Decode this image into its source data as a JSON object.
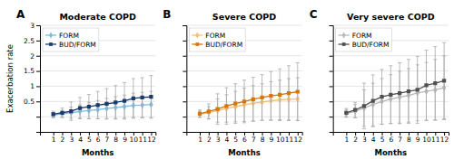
{
  "chart_data": [
    {
      "type": "line",
      "title": "Moderate COPD",
      "annotations": [
        "A"
      ],
      "xlabel": "Months",
      "ylabel": "Exacerbation rate",
      "x": [
        1,
        2,
        3,
        4,
        5,
        6,
        7,
        8,
        9,
        10,
        11,
        12
      ],
      "xlim": [
        -0.5,
        12.5
      ],
      "xticks": [
        1,
        2,
        3,
        4,
        5,
        6,
        7,
        8,
        9,
        10,
        11,
        12
      ],
      "ylim": [
        -0.5,
        3.0
      ],
      "yticks": [
        {
          "value": 0.0,
          "label": null
        },
        0.5,
        1,
        1.5,
        2,
        2.5,
        3
      ],
      "grid": true,
      "legend": "upper left",
      "series": [
        {
          "name": "FORM",
          "color": "#7bbcde",
          "marker": "diamond",
          "values": [
            0.05,
            0.09,
            0.13,
            0.17,
            0.2,
            0.23,
            0.27,
            0.3,
            0.33,
            0.37,
            0.38,
            0.4
          ],
          "errors": [
            0.08,
            0.12,
            0.18,
            0.22,
            0.27,
            0.3,
            0.33,
            0.36,
            0.38,
            0.4,
            0.42,
            0.43
          ]
        },
        {
          "name": "BUD/FORM",
          "color": "#1a3a6b",
          "marker": "square",
          "values": [
            0.08,
            0.13,
            0.18,
            0.28,
            0.33,
            0.38,
            0.42,
            0.47,
            0.52,
            0.6,
            0.63,
            0.65
          ],
          "errors": [
            0.1,
            0.15,
            0.3,
            0.35,
            0.4,
            0.45,
            0.5,
            0.55,
            0.6,
            0.65,
            0.65,
            0.7
          ]
        }
      ]
    },
    {
      "type": "line",
      "title": "Severe COPD",
      "annotations": [
        "B"
      ],
      "xlabel": "Months",
      "x": [
        1,
        2,
        3,
        4,
        5,
        6,
        7,
        8,
        9,
        10,
        11,
        12
      ],
      "xlim": [
        -0.5,
        12.5
      ],
      "xticks": [
        1,
        2,
        3,
        4,
        5,
        6,
        7,
        8,
        9,
        10,
        11,
        12
      ],
      "ylim": [
        -0.5,
        3.0
      ],
      "yticks": [
        0.0,
        0.5,
        1.0,
        1.5,
        2.0,
        2.5,
        3.0
      ],
      "tick_labels": "x",
      "grid": true,
      "legend": "upper left",
      "series": [
        {
          "name": "FORM",
          "color": "#f5c070",
          "marker": "diamond",
          "values": [
            0.08,
            0.13,
            0.2,
            0.27,
            0.33,
            0.39,
            0.44,
            0.48,
            0.52,
            0.55,
            0.57,
            0.58
          ],
          "errors": [
            0.1,
            0.2,
            0.38,
            0.45,
            0.5,
            0.55,
            0.58,
            0.6,
            0.63,
            0.65,
            0.68,
            0.7
          ]
        },
        {
          "name": "BUD/FORM",
          "color": "#d4760a",
          "marker": "square",
          "values": [
            0.1,
            0.17,
            0.25,
            0.35,
            0.43,
            0.5,
            0.57,
            0.63,
            0.68,
            0.72,
            0.77,
            0.82
          ],
          "errors": [
            0.12,
            0.25,
            0.5,
            0.6,
            0.65,
            0.7,
            0.72,
            0.75,
            0.8,
            0.85,
            0.9,
            0.95
          ]
        }
      ]
    },
    {
      "type": "line",
      "title": "Very severe COPD",
      "annotations": [
        "C"
      ],
      "xlabel": "Months",
      "x": [
        1,
        2,
        3,
        4,
        5,
        6,
        7,
        8,
        9,
        10,
        11,
        12
      ],
      "xlim": [
        -0.5,
        12.5
      ],
      "xticks": [
        1,
        2,
        3,
        4,
        5,
        6,
        7,
        8,
        9,
        10,
        11,
        12
      ],
      "ylim": [
        -0.5,
        3.0
      ],
      "yticks": [
        0.0,
        0.5,
        1.0,
        1.5,
        2.0,
        2.5,
        3.0
      ],
      "tick_labels": "x",
      "grid": true,
      "legend": "upper left",
      "series": [
        {
          "name": "FORM",
          "color": "#b8b8b8",
          "marker": "diamond",
          "values": [
            0.1,
            0.18,
            0.28,
            0.4,
            0.5,
            0.58,
            0.64,
            0.7,
            0.78,
            0.83,
            0.88,
            0.95
          ],
          "errors": [
            0.12,
            0.22,
            0.6,
            0.7,
            0.75,
            0.8,
            0.85,
            0.88,
            0.92,
            0.95,
            1.0,
            1.05
          ]
        },
        {
          "name": "BUD/FORM",
          "color": "#505050",
          "marker": "square",
          "values": [
            0.13,
            0.22,
            0.35,
            0.52,
            0.65,
            0.72,
            0.77,
            0.83,
            0.88,
            1.03,
            1.1,
            1.18
          ],
          "errors": [
            0.14,
            0.25,
            0.75,
            0.85,
            0.9,
            0.95,
            1.0,
            1.05,
            1.1,
            1.15,
            1.2,
            1.25
          ]
        }
      ]
    }
  ]
}
